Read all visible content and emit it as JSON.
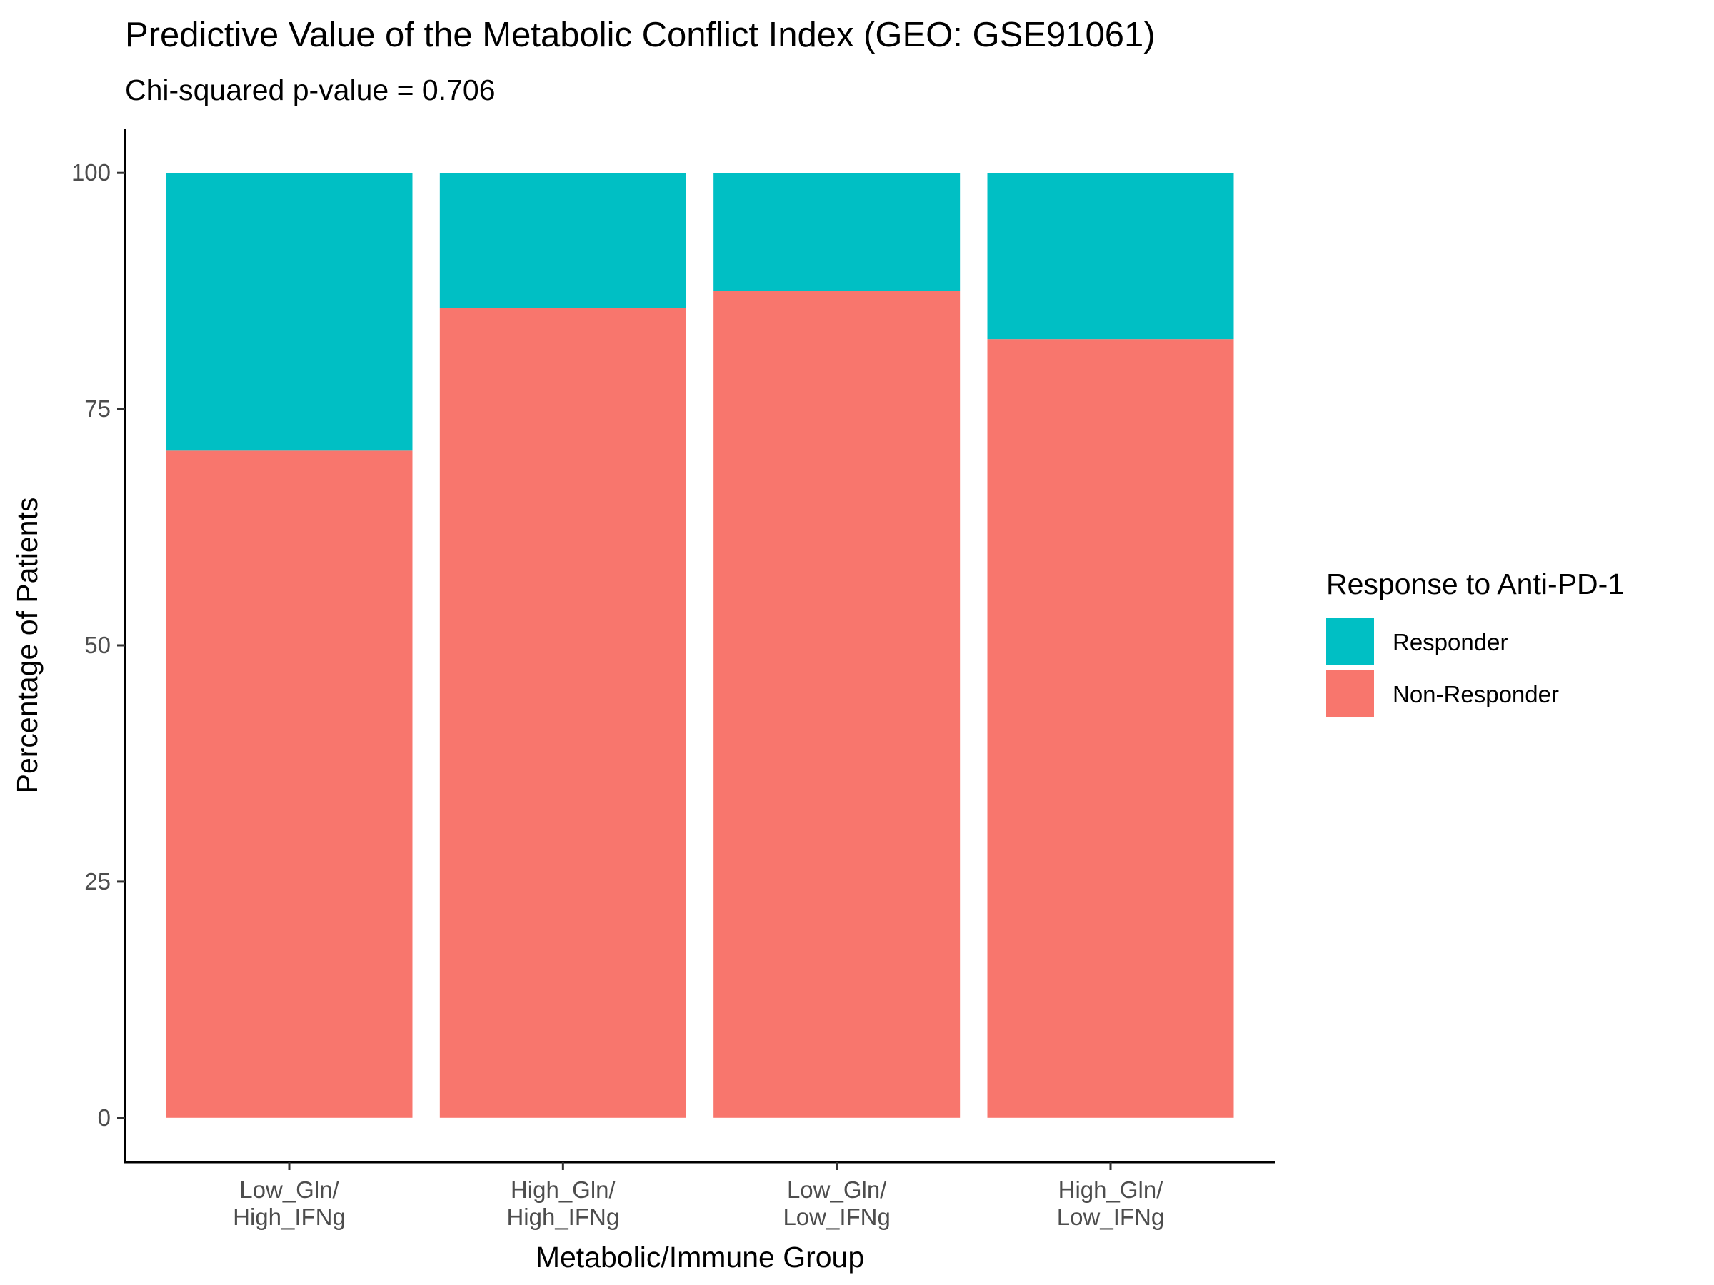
{
  "chart_data": {
    "type": "bar",
    "stacked": true,
    "title": "Predictive Value of the Metabolic Conflict Index (GEO: GSE91061)",
    "subtitle": "Chi-squared p-value = 0.706",
    "xlabel": "Metabolic/Immune Group",
    "ylabel": "Percentage of Patients",
    "categories": [
      [
        "Low_Gln/",
        "High_IFNg"
      ],
      [
        "High_Gln/",
        "High_IFNg"
      ],
      [
        "Low_Gln/",
        "Low_IFNg"
      ],
      [
        "High_Gln/",
        "Low_IFNg"
      ]
    ],
    "series": [
      {
        "name": "Non-Responder",
        "color": "#F8766D",
        "values": [
          70.6,
          85.7,
          87.5,
          82.4
        ]
      },
      {
        "name": "Responder",
        "color": "#00BFC4",
        "values": [
          29.4,
          14.3,
          12.5,
          17.6
        ]
      }
    ],
    "ylim": [
      -4.7,
      104.7
    ],
    "yticks": [
      0,
      25,
      50,
      75,
      100
    ],
    "grid": false,
    "legend": {
      "title": "Response to Anti-PD-1",
      "position": "right",
      "items": [
        {
          "label": "Responder",
          "color": "#00BFC4"
        },
        {
          "label": "Non-Responder",
          "color": "#F8766D"
        }
      ]
    }
  }
}
